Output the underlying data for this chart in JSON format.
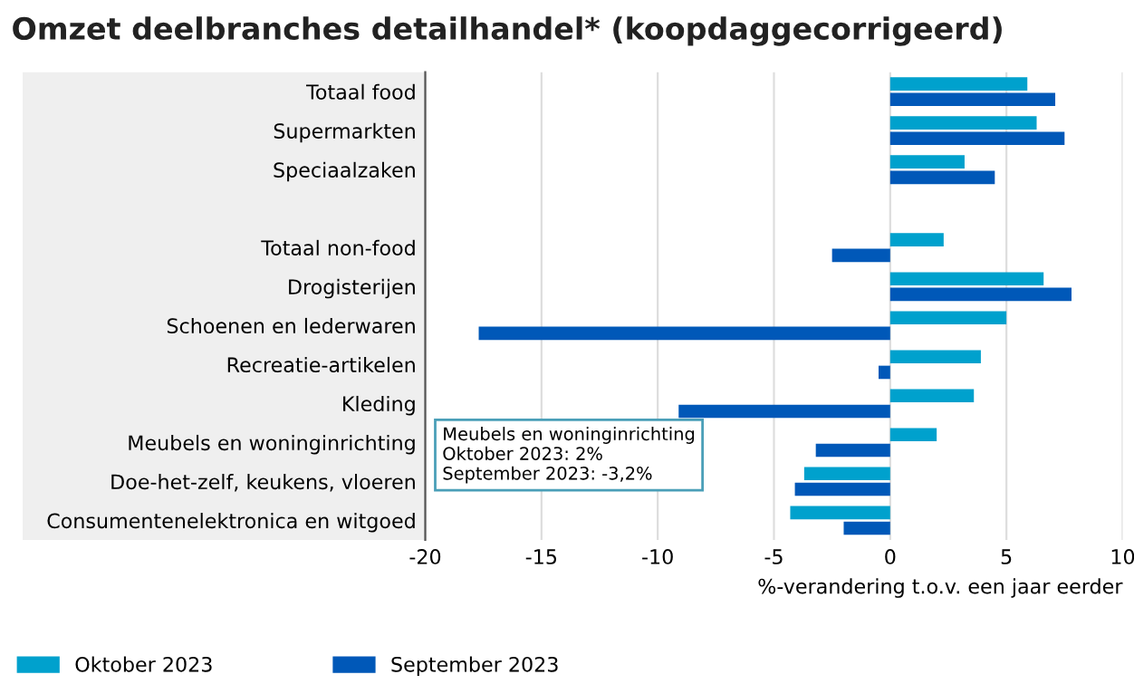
{
  "chart_data": {
    "type": "bar",
    "orientation": "horizontal",
    "title": "Omzet deelbranches detailhandel* (koopdaggecorrigeerd)",
    "xlabel": "%-verandering t.o.v. een jaar eerder",
    "categories": [
      "Totaal food",
      "Supermarkten",
      "Speciaalzaken",
      null,
      "Totaal non-food",
      "Drogisterijen",
      "Schoenen en lederwaren",
      "Recreatie-artikelen",
      "Kleding",
      "Meubels en woninginrichting",
      "Doe-het-zelf, keukens, vloeren",
      "Consumentenelektronica en witgoed"
    ],
    "series": [
      {
        "name": "Oktober 2023",
        "color": "#00a1cd",
        "values": [
          5.9,
          6.3,
          3.2,
          null,
          2.3,
          6.6,
          5.0,
          3.9,
          3.6,
          2,
          -3.7,
          -4.3
        ]
      },
      {
        "name": "September 2023",
        "color": "#0058b8",
        "values": [
          7.1,
          7.5,
          4.5,
          null,
          -2.5,
          7.8,
          -17.7,
          -0.5,
          -9.1,
          -3.2,
          -4.1,
          -2.0
        ]
      }
    ],
    "xlim": [
      -20,
      10
    ],
    "xticks": [
      -20,
      -15,
      -10,
      -5,
      0,
      5,
      10
    ],
    "grid": "x",
    "legend": "bottom left",
    "annotations": [
      "Meubels en woninginrichting",
      "Oktober 2023: 2%",
      "September 2023: -3,2%"
    ]
  }
}
